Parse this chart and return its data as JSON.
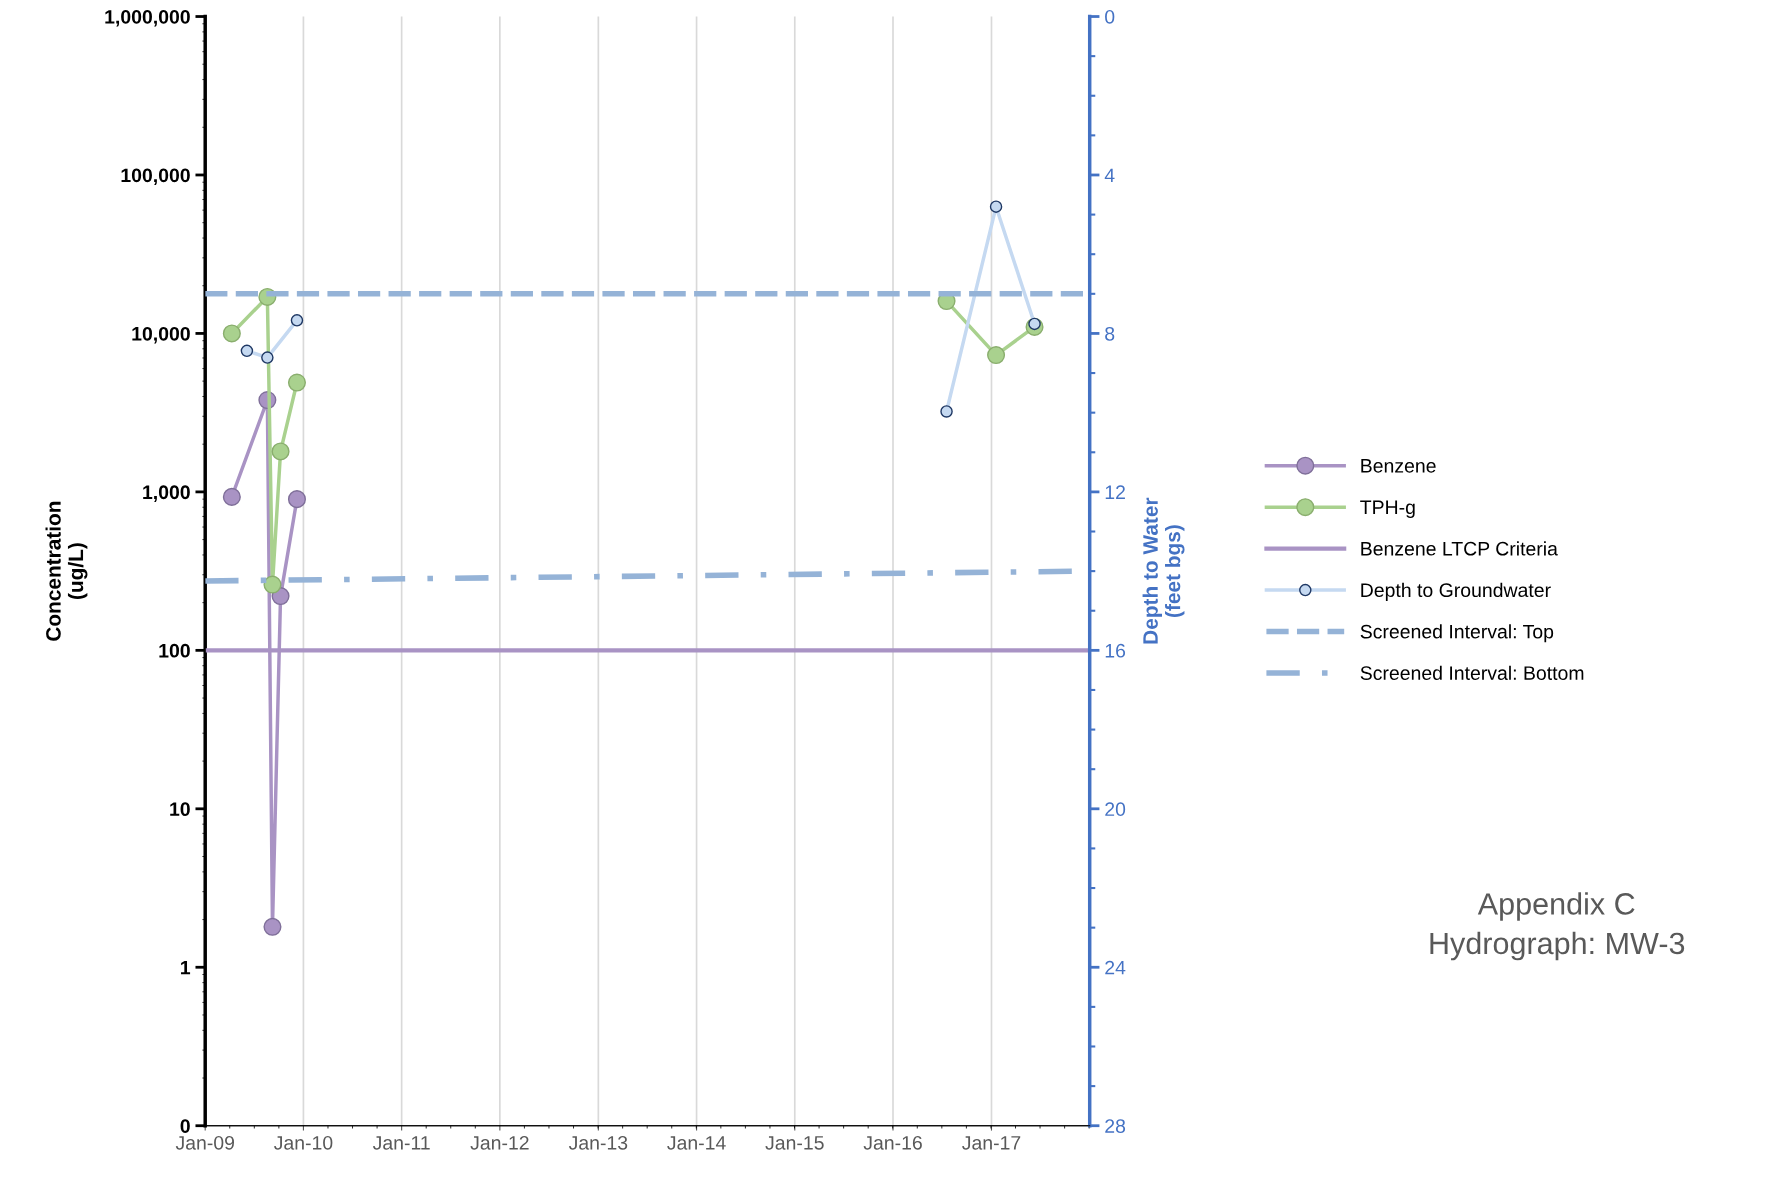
{
  "chart_data": {
    "type": "line",
    "xlabel": null,
    "ylabel": "Concentration\n(ug/L)",
    "y2label": "Depth to Water\n(feet bgs)",
    "series": [
      {
        "name": "Benzene",
        "color": "#a993c4",
        "marker": "circle",
        "line_style": "solid",
        "x": [
          "2009-04-10",
          "2009-08-20",
          "2009-09-08",
          "2009-10-08",
          "2009-12-08"
        ],
        "values": [
          930,
          3800,
          1.8,
          220,
          900
        ]
      },
      {
        "name": "TPH-g",
        "color": "#a9d18e",
        "marker": "circle",
        "line_style": "solid",
        "x": [
          "2009-04-10",
          "2009-08-20",
          "2009-09-08",
          "2009-10-08",
          "2009-12-08",
          "2013-01-01",
          "2016-07-18",
          "2017-01-18",
          "2017-06-10"
        ],
        "values": [
          10000,
          17000,
          260,
          1800,
          4900,
          null,
          16000,
          7300,
          11000
        ]
      },
      {
        "name": "Benzene LTCP Criteria",
        "color": "#a993c4",
        "marker": "none",
        "line_style": "solid",
        "x": [
          "2009-01-01",
          "2018-01-01"
        ],
        "values": [
          100,
          100
        ]
      },
      {
        "name": "Depth to Groundwater",
        "color": "#c5d9f1",
        "marker": "circle",
        "line_style": "solid",
        "axis": "y2",
        "x": [
          "2009-06-05",
          "2009-08-20",
          "2009-12-08",
          "2013-01-01",
          "2016-07-18",
          "2017-01-18",
          "2017-06-10"
        ],
        "values": [
          8.44,
          8.61,
          7.67,
          null,
          9.97,
          4.8,
          7.76
        ]
      },
      {
        "name": "Screened Interval: Top",
        "color": "#95b3d7",
        "marker": "none",
        "line_style": "dashed",
        "axis": "y2",
        "x": [
          "2009-01-01",
          "2018-01-01"
        ],
        "values": [
          7,
          7
        ]
      },
      {
        "name": "Screened Interval: Bottom",
        "color": "#95b3d7",
        "marker": "none",
        "line_style": "dashdot",
        "axis": "y2",
        "x": [
          "2009-01-01",
          "2018-01-01"
        ],
        "values": [
          14.25,
          14.0
        ]
      }
    ],
    "log": "y",
    "xlim": [
      "2009-01-01",
      "2018-01-01"
    ],
    "xticks": [
      {
        "value": "2009-01-01",
        "label": "Jan-09"
      },
      {
        "value": "2010-01-01",
        "label": "Jan-10"
      },
      {
        "value": "2011-01-01",
        "label": "Jan-11"
      },
      {
        "value": "2012-01-01",
        "label": "Jan-12"
      },
      {
        "value": "2013-01-01",
        "label": "Jan-13"
      },
      {
        "value": "2014-01-01",
        "label": "Jan-14"
      },
      {
        "value": "2015-01-01",
        "label": "Jan-15"
      },
      {
        "value": "2016-01-01",
        "label": "Jan-16"
      },
      {
        "value": "2017-01-01",
        "label": "Jan-17"
      }
    ],
    "ylim": [
      0.1,
      1000000
    ],
    "yticks": [
      {
        "value": 0.1,
        "label": "0"
      },
      1,
      10,
      {
        "value": 100,
        "label": "100"
      },
      {
        "value": 1000,
        "label": "1,000"
      },
      {
        "value": 10000,
        "label": "10,000"
      },
      {
        "value": 100000,
        "label": "100,000"
      },
      {
        "value": 1000000,
        "label": "1,000,000"
      }
    ],
    "y2lim": [
      28,
      0
    ],
    "y2ticks": [
      0,
      4,
      8,
      12,
      16,
      20,
      24,
      28
    ],
    "grid": "x",
    "legend": "right",
    "annotations": [
      "Appendix C\nHydrograph: MW-3"
    ]
  }
}
